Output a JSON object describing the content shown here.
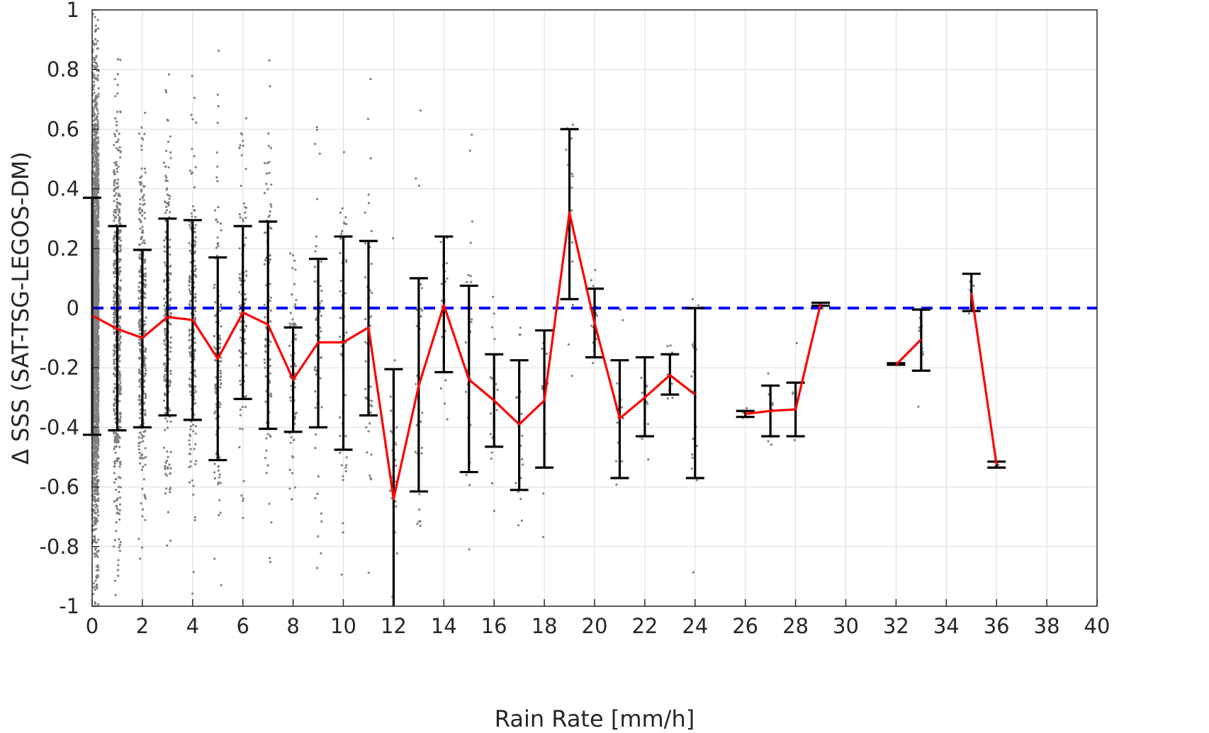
{
  "chart_data": {
    "type": "scatter",
    "xlabel": "Rain Rate [mm/h]",
    "ylabel": "Δ SSS (SAT-TSG-LEGOS-DM)",
    "xlim": [
      0,
      40
    ],
    "ylim": [
      -1,
      1
    ],
    "x_ticks": [
      "0",
      "2",
      "4",
      "6",
      "8",
      "10",
      "12",
      "14",
      "16",
      "18",
      "20",
      "22",
      "24",
      "26",
      "28",
      "30",
      "32",
      "34",
      "36",
      "38",
      "40"
    ],
    "y_ticks": [
      "-1",
      "-0.8",
      "-0.6",
      "-0.4",
      "-0.2",
      "0",
      "0.2",
      "0.4",
      "0.6",
      "0.8",
      "1"
    ],
    "grid": true,
    "colors": {
      "scatter": "#808080",
      "mean_line": "#ff0000",
      "error_bars": "#000000",
      "zero_line": "#0000ff",
      "grid": "#dcdcdc"
    },
    "zero_line": {
      "y": 0,
      "style": "dashed"
    },
    "mean_series": [
      [
        [
          0,
          -0.025
        ],
        [
          1,
          -0.07
        ],
        [
          2,
          -0.1
        ],
        [
          3,
          -0.03
        ],
        [
          4,
          -0.04
        ],
        [
          5,
          -0.17
        ],
        [
          6,
          -0.015
        ],
        [
          7,
          -0.055
        ],
        [
          8,
          -0.24
        ],
        [
          9,
          -0.115
        ],
        [
          10,
          -0.115
        ],
        [
          11,
          -0.065
        ],
        [
          12,
          -0.64
        ],
        [
          13,
          -0.26
        ],
        [
          14,
          0.01
        ],
        [
          15,
          -0.24
        ],
        [
          16,
          -0.31
        ],
        [
          17,
          -0.39
        ],
        [
          18,
          -0.31
        ],
        [
          19,
          0.32
        ],
        [
          20,
          -0.05
        ],
        [
          21,
          -0.37
        ],
        [
          22,
          -0.3
        ],
        [
          23,
          -0.225
        ],
        [
          24,
          -0.29
        ]
      ],
      [
        [
          26,
          -0.355
        ],
        [
          27,
          -0.345
        ],
        [
          28,
          -0.34
        ],
        [
          29,
          0.015
        ]
      ],
      [
        [
          32,
          -0.19
        ],
        [
          33,
          -0.105
        ]
      ],
      [
        [
          35,
          0.05
        ],
        [
          36,
          -0.525
        ]
      ]
    ],
    "error_bars": [
      {
        "x": 0,
        "low": -0.425,
        "high": 0.37
      },
      {
        "x": 1,
        "low": -0.41,
        "high": 0.275
      },
      {
        "x": 2,
        "low": -0.4,
        "high": 0.195
      },
      {
        "x": 3,
        "low": -0.36,
        "high": 0.3
      },
      {
        "x": 4,
        "low": -0.375,
        "high": 0.295
      },
      {
        "x": 5,
        "low": -0.51,
        "high": 0.17
      },
      {
        "x": 6,
        "low": -0.305,
        "high": 0.275
      },
      {
        "x": 7,
        "low": -0.405,
        "high": 0.29
      },
      {
        "x": 8,
        "low": -0.415,
        "high": -0.065
      },
      {
        "x": 9,
        "low": -0.4,
        "high": 0.165
      },
      {
        "x": 10,
        "low": -0.475,
        "high": 0.24
      },
      {
        "x": 11,
        "low": -0.36,
        "high": 0.225
      },
      {
        "x": 12,
        "low": -1.0,
        "high": -0.205
      },
      {
        "x": 13,
        "low": -0.615,
        "high": 0.1
      },
      {
        "x": 14,
        "low": -0.215,
        "high": 0.24
      },
      {
        "x": 15,
        "low": -0.55,
        "high": 0.075
      },
      {
        "x": 16,
        "low": -0.465,
        "high": -0.155
      },
      {
        "x": 17,
        "low": -0.61,
        "high": -0.175
      },
      {
        "x": 18,
        "low": -0.535,
        "high": -0.075
      },
      {
        "x": 19,
        "low": 0.03,
        "high": 0.6
      },
      {
        "x": 20,
        "low": -0.165,
        "high": 0.065
      },
      {
        "x": 21,
        "low": -0.57,
        "high": -0.175
      },
      {
        "x": 22,
        "low": -0.43,
        "high": -0.165
      },
      {
        "x": 23,
        "low": -0.29,
        "high": -0.155
      },
      {
        "x": 24,
        "low": -0.57,
        "high": 0.0
      },
      {
        "x": 26,
        "low": -0.365,
        "high": -0.345
      },
      {
        "x": 27,
        "low": -0.43,
        "high": -0.26
      },
      {
        "x": 28,
        "low": -0.43,
        "high": -0.25
      },
      {
        "x": 29,
        "low": 0.008,
        "high": 0.018
      },
      {
        "x": 32,
        "low": -0.19,
        "high": -0.185
      },
      {
        "x": 33,
        "low": -0.21,
        "high": -0.005
      },
      {
        "x": 35,
        "low": -0.01,
        "high": 0.115
      },
      {
        "x": 36,
        "low": -0.535,
        "high": -0.515
      }
    ],
    "scatter_clusters": [
      {
        "x": 0.12,
        "spread": 0.28,
        "mean": -0.02,
        "sd": 0.38,
        "n": 2600
      },
      {
        "x": 1.0,
        "spread": 0.35,
        "mean": -0.06,
        "sd": 0.34,
        "n": 550
      },
      {
        "x": 2.0,
        "spread": 0.35,
        "mean": -0.09,
        "sd": 0.3,
        "n": 330
      },
      {
        "x": 3.0,
        "spread": 0.35,
        "mean": -0.04,
        "sd": 0.32,
        "n": 230
      },
      {
        "x": 4.0,
        "spread": 0.35,
        "mean": -0.04,
        "sd": 0.33,
        "n": 200
      },
      {
        "x": 5.0,
        "spread": 0.35,
        "mean": -0.15,
        "sd": 0.34,
        "n": 130
      },
      {
        "x": 6.0,
        "spread": 0.35,
        "mean": -0.02,
        "sd": 0.29,
        "n": 110
      },
      {
        "x": 7.0,
        "spread": 0.35,
        "mean": -0.05,
        "sd": 0.34,
        "n": 90
      },
      {
        "x": 8.0,
        "spread": 0.35,
        "mean": -0.22,
        "sd": 0.2,
        "n": 70
      },
      {
        "x": 9.0,
        "spread": 0.35,
        "mean": -0.11,
        "sd": 0.28,
        "n": 55
      },
      {
        "x": 10.0,
        "spread": 0.35,
        "mean": -0.11,
        "sd": 0.35,
        "n": 55
      },
      {
        "x": 11.0,
        "spread": 0.35,
        "mean": -0.06,
        "sd": 0.3,
        "n": 45
      },
      {
        "x": 12.0,
        "spread": 0.35,
        "mean": -0.55,
        "sd": 0.3,
        "n": 30
      },
      {
        "x": 13.0,
        "spread": 0.35,
        "mean": -0.25,
        "sd": 0.35,
        "n": 30
      },
      {
        "x": 14.0,
        "spread": 0.35,
        "mean": 0.0,
        "sd": 0.22,
        "n": 20
      },
      {
        "x": 15.0,
        "spread": 0.35,
        "mean": -0.24,
        "sd": 0.3,
        "n": 25
      },
      {
        "x": 16.0,
        "spread": 0.35,
        "mean": -0.3,
        "sd": 0.15,
        "n": 20
      },
      {
        "x": 17.0,
        "spread": 0.35,
        "mean": -0.38,
        "sd": 0.2,
        "n": 18
      },
      {
        "x": 18.0,
        "spread": 0.35,
        "mean": -0.3,
        "sd": 0.22,
        "n": 15
      },
      {
        "x": 19.0,
        "spread": 0.35,
        "mean": 0.3,
        "sd": 0.25,
        "n": 15
      },
      {
        "x": 20.0,
        "spread": 0.35,
        "mean": -0.06,
        "sd": 0.12,
        "n": 15
      },
      {
        "x": 21.0,
        "spread": 0.35,
        "mean": -0.36,
        "sd": 0.18,
        "n": 15
      },
      {
        "x": 22.0,
        "spread": 0.35,
        "mean": -0.3,
        "sd": 0.12,
        "n": 12
      },
      {
        "x": 23.0,
        "spread": 0.35,
        "mean": -0.22,
        "sd": 0.07,
        "n": 10
      },
      {
        "x": 24.0,
        "spread": 0.35,
        "mean": -0.28,
        "sd": 0.25,
        "n": 18
      },
      {
        "x": 26.0,
        "spread": 0.25,
        "mean": -0.355,
        "sd": 0.01,
        "n": 5
      },
      {
        "x": 27.0,
        "spread": 0.3,
        "mean": -0.34,
        "sd": 0.08,
        "n": 8
      },
      {
        "x": 28.0,
        "spread": 0.3,
        "mean": -0.34,
        "sd": 0.09,
        "n": 8
      },
      {
        "x": 29.0,
        "spread": 0.25,
        "mean": 0.012,
        "sd": 0.006,
        "n": 5
      },
      {
        "x": 32.0,
        "spread": 0.2,
        "mean": -0.188,
        "sd": 0.004,
        "n": 4
      },
      {
        "x": 33.0,
        "spread": 0.3,
        "mean": -0.1,
        "sd": 0.09,
        "n": 10
      },
      {
        "x": 35.0,
        "spread": 0.25,
        "mean": 0.05,
        "sd": 0.05,
        "n": 8
      },
      {
        "x": 36.0,
        "spread": 0.2,
        "mean": -0.525,
        "sd": 0.01,
        "n": 4
      }
    ]
  }
}
